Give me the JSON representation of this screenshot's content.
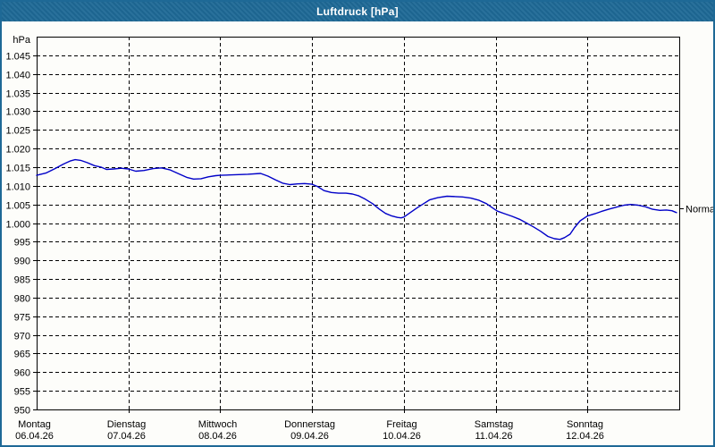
{
  "window": {
    "title": "Luftdruck [hPa]"
  },
  "colors": {
    "titlebar": "#1e6996",
    "border": "#1e6996",
    "background": "#fdfdfa",
    "line": "#0000c8",
    "grid": "#000000",
    "text": "#000000"
  },
  "chart_data": {
    "type": "line",
    "title": "Luftdruck [hPa]",
    "unit_label": "hPa",
    "ylim": [
      950,
      1050
    ],
    "ytick_step": 5,
    "yticks": [
      {
        "value": 1045,
        "label": "1.045"
      },
      {
        "value": 1040,
        "label": "1.040"
      },
      {
        "value": 1035,
        "label": "1.035"
      },
      {
        "value": 1030,
        "label": "1.030"
      },
      {
        "value": 1025,
        "label": "1.025"
      },
      {
        "value": 1020,
        "label": "1.020"
      },
      {
        "value": 1015,
        "label": "1.015"
      },
      {
        "value": 1010,
        "label": "1.010"
      },
      {
        "value": 1005,
        "label": "1.005"
      },
      {
        "value": 1000,
        "label": "1.000"
      },
      {
        "value": 995,
        "label": "995"
      },
      {
        "value": 990,
        "label": "990"
      },
      {
        "value": 985,
        "label": "985"
      },
      {
        "value": 980,
        "label": "980"
      },
      {
        "value": 975,
        "label": "975"
      },
      {
        "value": 970,
        "label": "970"
      },
      {
        "value": 965,
        "label": "965"
      },
      {
        "value": 960,
        "label": "960"
      },
      {
        "value": 955,
        "label": "955"
      },
      {
        "value": 950,
        "label": "950"
      }
    ],
    "xlim_days": [
      0,
      7
    ],
    "x_categories": [
      {
        "day": "Montag",
        "date": "06.04.26"
      },
      {
        "day": "Dienstag",
        "date": "07.04.26"
      },
      {
        "day": "Mittwoch",
        "date": "08.04.26"
      },
      {
        "day": "Donnerstag",
        "date": "09.04.26"
      },
      {
        "day": "Freitag",
        "date": "10.04.26"
      },
      {
        "day": "Samstag",
        "date": "11.04.26"
      },
      {
        "day": "Sonntag",
        "date": "12.04.26"
      }
    ],
    "normal_marker": {
      "label": "Normal",
      "value": 1004
    },
    "grid": "dashed",
    "legend_position": "none",
    "series": [
      {
        "name": "Luftdruck",
        "color": "#0000c8",
        "points": [
          [
            0.0,
            1012.8
          ],
          [
            0.1,
            1013.4
          ],
          [
            0.2,
            1014.6
          ],
          [
            0.29,
            1015.8
          ],
          [
            0.37,
            1016.7
          ],
          [
            0.42,
            1017.0
          ],
          [
            0.48,
            1016.8
          ],
          [
            0.55,
            1016.2
          ],
          [
            0.63,
            1015.4
          ],
          [
            0.7,
            1015.0
          ],
          [
            0.76,
            1014.4
          ],
          [
            0.84,
            1014.5
          ],
          [
            0.92,
            1014.7
          ],
          [
            1.0,
            1014.5
          ],
          [
            1.08,
            1013.9
          ],
          [
            1.17,
            1014.1
          ],
          [
            1.27,
            1014.6
          ],
          [
            1.36,
            1014.8
          ],
          [
            1.45,
            1014.3
          ],
          [
            1.55,
            1013.2
          ],
          [
            1.64,
            1012.2
          ],
          [
            1.71,
            1011.8
          ],
          [
            1.79,
            1011.9
          ],
          [
            1.87,
            1012.4
          ],
          [
            1.95,
            1012.7
          ],
          [
            2.0,
            1012.8
          ],
          [
            2.1,
            1012.9
          ],
          [
            2.2,
            1013.0
          ],
          [
            2.3,
            1013.1
          ],
          [
            2.44,
            1013.3
          ],
          [
            2.52,
            1012.6
          ],
          [
            2.6,
            1011.6
          ],
          [
            2.68,
            1010.7
          ],
          [
            2.76,
            1010.3
          ],
          [
            2.84,
            1010.5
          ],
          [
            2.92,
            1010.6
          ],
          [
            3.0,
            1010.4
          ],
          [
            3.06,
            1009.8
          ],
          [
            3.13,
            1008.7
          ],
          [
            3.21,
            1008.2
          ],
          [
            3.29,
            1008.0
          ],
          [
            3.37,
            1008.0
          ],
          [
            3.44,
            1007.8
          ],
          [
            3.51,
            1007.3
          ],
          [
            3.58,
            1006.4
          ],
          [
            3.66,
            1005.2
          ],
          [
            3.73,
            1003.8
          ],
          [
            3.8,
            1002.6
          ],
          [
            3.87,
            1001.9
          ],
          [
            3.93,
            1001.5
          ],
          [
            3.97,
            1001.4
          ],
          [
            4.0,
            1001.6
          ],
          [
            4.07,
            1002.8
          ],
          [
            4.14,
            1004.0
          ],
          [
            4.21,
            1005.1
          ],
          [
            4.28,
            1006.2
          ],
          [
            4.37,
            1006.8
          ],
          [
            4.47,
            1007.2
          ],
          [
            4.56,
            1007.1
          ],
          [
            4.64,
            1007.0
          ],
          [
            4.73,
            1006.7
          ],
          [
            4.82,
            1006.1
          ],
          [
            4.9,
            1005.2
          ],
          [
            4.97,
            1004.0
          ],
          [
            5.02,
            1003.2
          ],
          [
            5.1,
            1002.5
          ],
          [
            5.18,
            1001.8
          ],
          [
            5.26,
            1001.0
          ],
          [
            5.33,
            1000.1
          ],
          [
            5.41,
            999.0
          ],
          [
            5.49,
            997.8
          ],
          [
            5.57,
            996.4
          ],
          [
            5.64,
            995.8
          ],
          [
            5.7,
            995.6
          ],
          [
            5.75,
            996.1
          ],
          [
            5.81,
            997.0
          ],
          [
            5.86,
            998.8
          ],
          [
            5.92,
            1000.6
          ],
          [
            6.0,
            1001.9
          ],
          [
            6.08,
            1002.5
          ],
          [
            6.15,
            1003.1
          ],
          [
            6.23,
            1003.7
          ],
          [
            6.32,
            1004.3
          ],
          [
            6.4,
            1004.8
          ],
          [
            6.47,
            1005.0
          ],
          [
            6.55,
            1004.8
          ],
          [
            6.63,
            1004.4
          ],
          [
            6.71,
            1003.7
          ],
          [
            6.79,
            1003.4
          ],
          [
            6.86,
            1003.5
          ],
          [
            6.92,
            1003.3
          ],
          [
            6.97,
            1002.8
          ]
        ]
      }
    ]
  }
}
